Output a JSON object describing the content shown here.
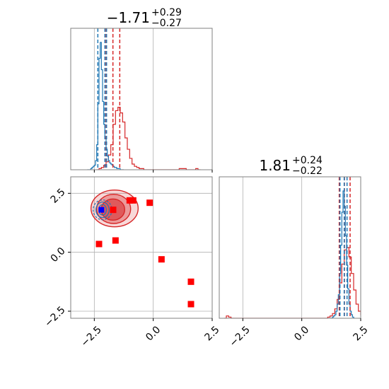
{
  "chart_data": {
    "type": "corner",
    "colors": {
      "blue": "#1f77b4",
      "red": "#d62728",
      "grid": "#b0b0b0",
      "frame": "#808080",
      "blue_marker": "#0000ff",
      "red_marker": "#ff0000"
    },
    "grid": true,
    "x_range": [
      -3.5,
      2.5
    ],
    "y_range": [
      -2.8,
      3.2
    ],
    "ticks": [
      -2.5,
      0.0,
      2.5
    ],
    "tick_labels": [
      "−2.5",
      "0.0",
      "2.5"
    ],
    "panels": [
      {
        "id": "param-0-hist",
        "title": {
          "main": "−1.71",
          "sup": "+0.29",
          "sub": "−0.27"
        },
        "blue_quantiles": [
          -2.35,
          -2.05,
          -1.98
        ],
        "red_quantiles": [
          -2.0,
          -1.71,
          -1.42
        ],
        "blue_hist": {
          "start": -2.8,
          "step": 0.05,
          "counts": [
            0,
            0,
            0,
            1,
            2,
            3,
            4,
            8,
            22,
            58,
            98,
            112,
            88,
            60,
            40,
            28,
            18,
            12,
            8,
            6,
            5,
            4,
            3,
            2,
            2,
            1,
            1,
            1,
            0,
            0,
            0
          ]
        },
        "red_hist": {
          "start": -2.4,
          "step": 0.1,
          "counts": [
            0,
            1,
            2,
            4,
            7,
            13,
            22,
            40,
            52,
            55,
            50,
            42,
            28,
            18,
            10,
            5,
            3,
            2,
            1,
            1,
            0,
            0,
            0,
            0,
            0,
            0,
            0,
            0,
            0,
            0,
            0,
            0,
            0,
            0,
            0,
            1,
            1,
            1,
            0,
            0,
            0,
            0,
            1,
            0
          ]
        }
      },
      {
        "id": "param-1-hist",
        "title": {
          "main": "1.81",
          "sup": "+0.24",
          "sub": "−0.22"
        },
        "blue_quantiles": [
          1.62,
          1.8,
          1.92
        ],
        "red_quantiles": [
          1.59,
          1.81,
          2.05
        ],
        "blue_hist": {
          "start": 1.2,
          "step": 0.05,
          "counts": [
            0,
            0,
            1,
            2,
            3,
            6,
            12,
            20,
            38,
            62,
            90,
            108,
            95,
            70,
            45,
            25,
            12,
            6,
            3,
            1,
            0
          ]
        },
        "red_hist": {
          "start": -3.3,
          "step": 0.1,
          "counts": [
            0,
            2,
            1,
            0,
            0,
            0,
            0,
            0,
            0,
            0,
            0,
            0,
            0,
            0,
            0,
            0,
            0,
            0,
            0,
            0,
            0,
            0,
            0,
            0,
            0,
            0,
            0,
            0,
            0,
            0,
            0,
            0,
            0,
            0,
            0,
            0,
            0,
            0,
            0,
            0,
            0,
            0,
            0,
            0,
            1,
            2,
            4,
            8,
            16,
            30,
            46,
            58,
            60,
            52,
            38,
            24,
            12,
            6,
            3,
            1,
            0
          ]
        }
      }
    ],
    "scatter": {
      "red_markers": [
        [
          -2.3,
          0.35
        ],
        [
          -1.6,
          0.5
        ],
        [
          -1.7,
          1.8
        ],
        [
          -1.0,
          2.2
        ],
        [
          -0.85,
          2.2
        ],
        [
          -0.15,
          2.1
        ],
        [
          0.35,
          -0.3
        ],
        [
          1.6,
          -1.25
        ],
        [
          1.6,
          -2.2
        ]
      ],
      "blue_markers": [
        [
          -2.2,
          1.8
        ]
      ],
      "red_contours": [
        {
          "cx": -1.71,
          "cy": 1.81,
          "rx": 0.5,
          "ry": 0.45,
          "fill_opacity": 0.55
        },
        {
          "cx": -1.68,
          "cy": 1.84,
          "rx": 0.72,
          "ry": 0.62,
          "fill_opacity": 0.35
        },
        {
          "cx": -1.64,
          "cy": 1.86,
          "rx": 1.0,
          "ry": 0.78,
          "fill_opacity": 0.18
        }
      ],
      "blue_contours": [
        {
          "cx": -2.15,
          "cy": 1.8,
          "rx": 0.16,
          "ry": 0.22
        },
        {
          "cx": -2.15,
          "cy": 1.8,
          "rx": 0.28,
          "ry": 0.33
        },
        {
          "cx": -2.15,
          "cy": 1.8,
          "rx": 0.4,
          "ry": 0.42
        }
      ]
    }
  }
}
